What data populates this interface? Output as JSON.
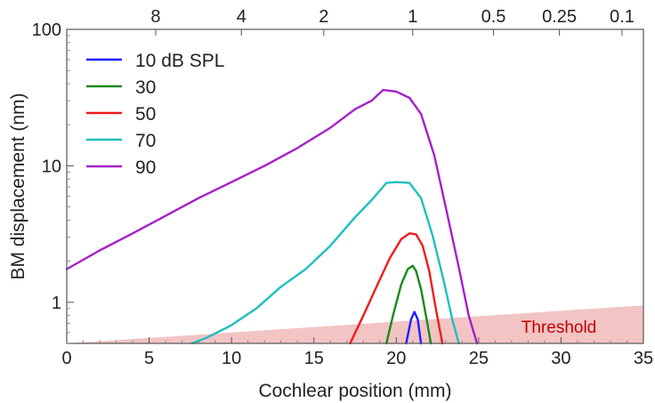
{
  "chart_data": {
    "type": "line",
    "title": "",
    "xlabel": "Cochlear position (mm)",
    "ylabel": "BM displacement (nm)",
    "xlim": [
      0,
      35
    ],
    "ylim": [
      0.5,
      100
    ],
    "y_scale": "log",
    "x_ticks": [
      0,
      5,
      10,
      15,
      20,
      25,
      30,
      35
    ],
    "x_tick_labels": [
      "0",
      "5",
      "10",
      "15",
      "20",
      "25",
      "30",
      "35"
    ],
    "y_ticks": [
      1,
      10,
      100
    ],
    "y_tick_labels": [
      "1",
      "10",
      "100"
    ],
    "top_ticks": [
      {
        "label": "8",
        "x": 5.4
      },
      {
        "label": "4",
        "x": 10.6
      },
      {
        "label": "2",
        "x": 15.6
      },
      {
        "label": "1",
        "x": 21.0
      },
      {
        "label": "0.5",
        "x": 25.9
      },
      {
        "label": "0.25",
        "x": 29.9
      },
      {
        "label": "0.1",
        "x": 33.7
      }
    ],
    "legend_position": "top-left",
    "annotation": {
      "text": "Threshold",
      "color": "#c00000"
    },
    "threshold": {
      "x": [
        0,
        35
      ],
      "y": [
        0.5,
        0.95
      ],
      "color": "#f2c4c4"
    },
    "series": [
      {
        "name": "10 dB SPL",
        "color": "#1f1fff",
        "x": [
          20.6,
          20.9,
          21.1,
          21.3,
          21.5
        ],
        "y": [
          0.5,
          0.75,
          0.85,
          0.75,
          0.5
        ]
      },
      {
        "name": "30",
        "color": "#1a8a1a",
        "x": [
          19.4,
          19.8,
          20.3,
          20.7,
          21.0,
          21.2,
          21.5,
          21.8,
          22.1
        ],
        "y": [
          0.5,
          0.8,
          1.35,
          1.75,
          1.85,
          1.7,
          1.25,
          0.8,
          0.5
        ]
      },
      {
        "name": "50",
        "color": "#ee1c1c",
        "x": [
          17.2,
          18.0,
          18.8,
          19.6,
          20.3,
          20.8,
          21.2,
          21.6,
          22.0,
          22.4,
          22.8
        ],
        "y": [
          0.5,
          0.8,
          1.3,
          2.1,
          2.9,
          3.2,
          3.15,
          2.6,
          1.7,
          0.9,
          0.5
        ]
      },
      {
        "name": "70",
        "color": "#1fbfbf",
        "x": [
          7.6,
          8.5,
          10.0,
          11.5,
          13.0,
          14.5,
          16.0,
          17.5,
          18.5,
          19.4,
          20.0,
          20.8,
          21.5,
          22.2,
          22.9,
          23.4,
          23.8
        ],
        "y": [
          0.5,
          0.55,
          0.68,
          0.9,
          1.3,
          1.75,
          2.6,
          4.2,
          5.6,
          7.5,
          7.6,
          7.5,
          5.8,
          3.1,
          1.4,
          0.75,
          0.5
        ]
      },
      {
        "name": "90",
        "color": "#a51fc8",
        "x": [
          0,
          2,
          4,
          6,
          8,
          10,
          12,
          14,
          16,
          17.5,
          18.5,
          19.2,
          20.0,
          20.8,
          21.5,
          22.3,
          23.0,
          23.8,
          24.4,
          24.9
        ],
        "y": [
          1.75,
          2.4,
          3.2,
          4.3,
          5.8,
          7.6,
          10.0,
          13.5,
          19.0,
          26.0,
          30.0,
          36.0,
          35.0,
          31.5,
          24.0,
          12.0,
          5.0,
          1.8,
          0.8,
          0.5
        ]
      }
    ]
  }
}
